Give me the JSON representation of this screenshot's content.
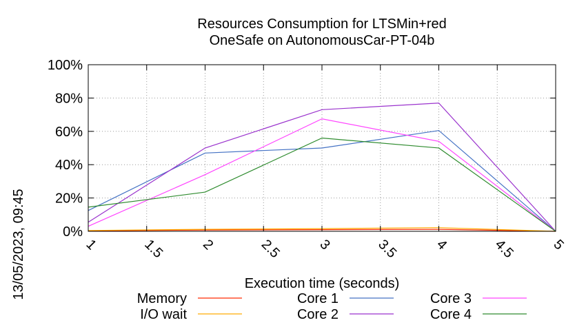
{
  "chart_data": {
    "type": "line",
    "title_lines": [
      "Resources Consumption for LTSMin+red",
      "OneSafe on AutonomousCar-PT-04b"
    ],
    "xlabel": "Execution time (seconds)",
    "ylabel": "",
    "side_label": "13/05/2023, 09:45",
    "xlim": [
      1,
      5
    ],
    "ylim": [
      0,
      100
    ],
    "x_ticks": [
      "1",
      "1.5",
      "2",
      "2.5",
      "3",
      "3.5",
      "4",
      "4.5",
      "5"
    ],
    "y_ticks": [
      "0%",
      "20%",
      "40%",
      "60%",
      "80%",
      "100%"
    ],
    "grid": true,
    "legend_position": "bottom",
    "x": [
      1,
      2,
      3,
      4,
      5
    ],
    "series": [
      {
        "name": "Memory",
        "color": "#ff2a00",
        "values": [
          0.3,
          0.8,
          1.0,
          1.2,
          0
        ]
      },
      {
        "name": "I/O wait",
        "color": "#ffaa00",
        "values": [
          0.5,
          1.2,
          1.6,
          2.2,
          0
        ]
      },
      {
        "name": "Core 1",
        "color": "#4472c4",
        "values": [
          12.5,
          47,
          50,
          60.5,
          0
        ]
      },
      {
        "name": "Core 2",
        "color": "#9a32cd",
        "values": [
          5.5,
          50,
          73,
          77,
          0
        ]
      },
      {
        "name": "Core 3",
        "color": "#ff44ff",
        "values": [
          3,
          34,
          67.5,
          54,
          0
        ]
      },
      {
        "name": "Core 4",
        "color": "#2e8b2e",
        "values": [
          14.5,
          23.5,
          56,
          50,
          0
        ]
      }
    ]
  }
}
